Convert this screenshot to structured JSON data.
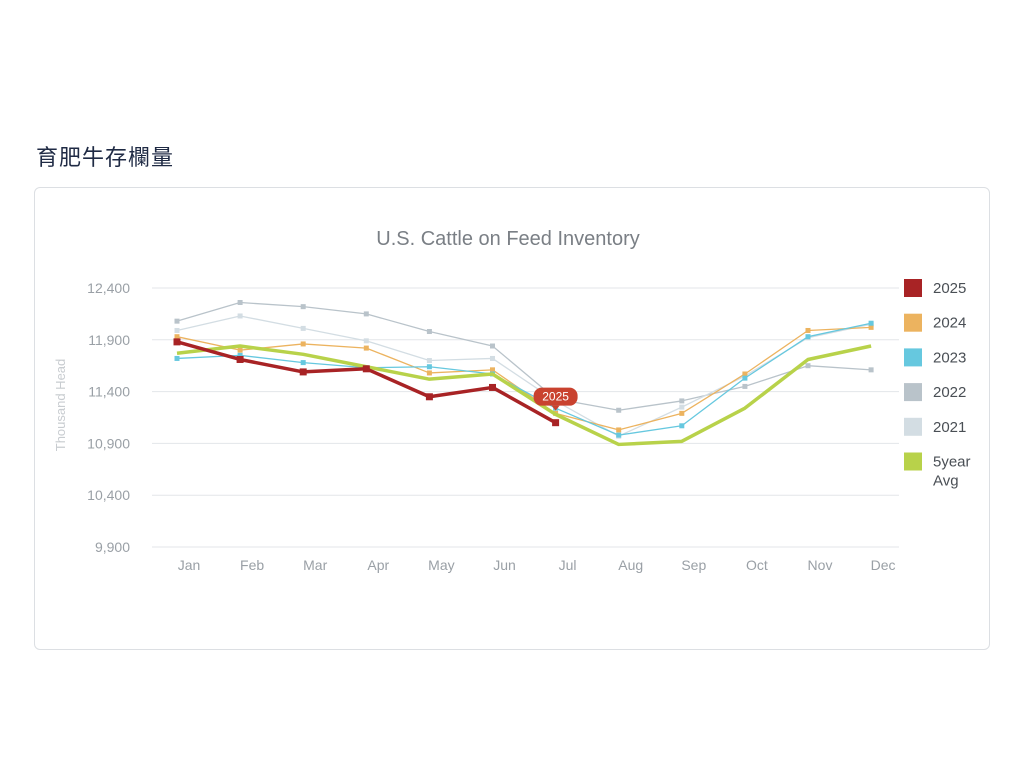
{
  "page": {
    "title": "育肥牛存欄量"
  },
  "chart_data": {
    "type": "line",
    "title": "U.S. Cattle on Feed Inventory",
    "xlabel": "",
    "ylabel": "Thousand Head",
    "categories": [
      "Jan",
      "Feb",
      "Mar",
      "Apr",
      "May",
      "Jun",
      "Jul",
      "Aug",
      "Sep",
      "Oct",
      "Nov",
      "Dec"
    ],
    "ylim": [
      9900,
      12400
    ],
    "yticks": [
      "12,400",
      "11,900",
      "11,400",
      "10,900",
      "10,400",
      "9,900"
    ],
    "ytick_values": [
      12400,
      11900,
      11400,
      10900,
      10400,
      9900
    ],
    "grid": true,
    "legend_position": "right",
    "series": [
      {
        "name": "2022",
        "color": "#b9c3ca",
        "values": [
          12080,
          12260,
          12220,
          12150,
          11980,
          11840,
          11330,
          11220,
          11310,
          11450,
          11650,
          11610
        ]
      },
      {
        "name": "2021",
        "color": "#d3dde3",
        "values": [
          11990,
          12130,
          12010,
          11890,
          11700,
          11720,
          11310,
          10970,
          11250,
          11550,
          11920,
          12050
        ]
      },
      {
        "name": "2024",
        "color": "#ecb35f",
        "values": [
          11930,
          11800,
          11860,
          11820,
          11580,
          11610,
          11190,
          11030,
          11190,
          11570,
          11990,
          12020
        ]
      },
      {
        "name": "2023",
        "color": "#66c8df",
        "values": [
          11720,
          11750,
          11680,
          11630,
          11640,
          11570,
          11240,
          10980,
          11070,
          11530,
          11930,
          12060
        ]
      },
      {
        "name": "5year Avg",
        "color": "#b8d24a",
        "values": [
          11770,
          11840,
          11760,
          11640,
          11520,
          11570,
          11180,
          10890,
          10920,
          11240,
          11710,
          11840
        ]
      },
      {
        "name": "2025",
        "color": "#a82325",
        "values": [
          11880,
          11710,
          11590,
          11620,
          11350,
          11440,
          11100,
          null,
          null,
          null,
          null,
          null
        ]
      }
    ],
    "legend": [
      "2025",
      "2024",
      "2023",
      "2022",
      "2021",
      "5year Avg"
    ],
    "tooltip": {
      "series": "2025",
      "index": 6,
      "label": "2025"
    }
  }
}
